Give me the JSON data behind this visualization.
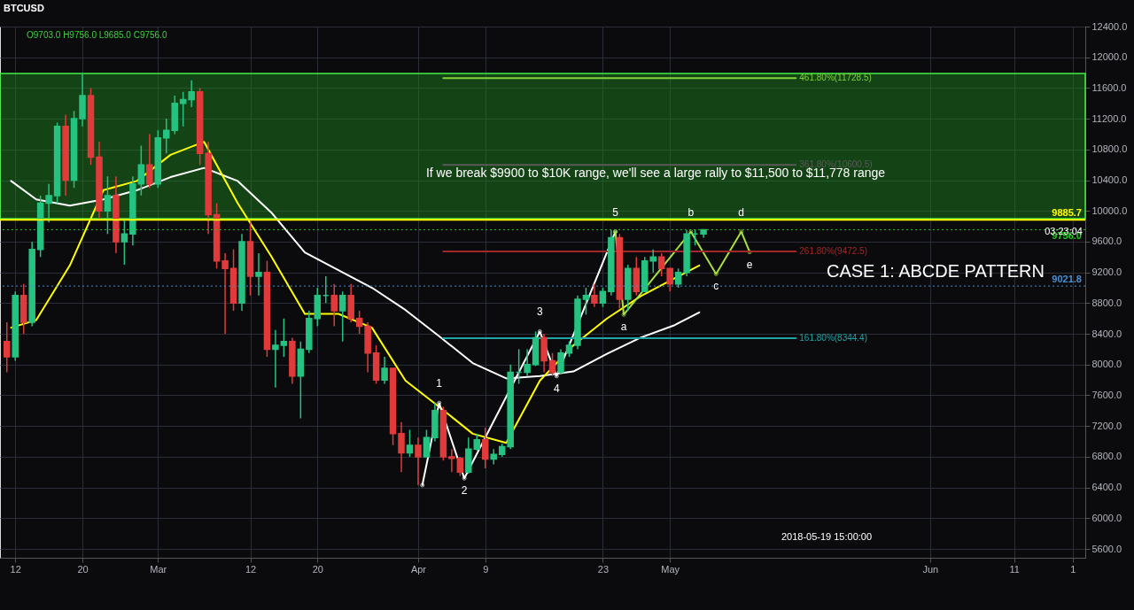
{
  "chart_data": {
    "type": "candlestick",
    "title": "BTCUSD",
    "subtitle": "O9703.0 H9756.0 L9685.0 C9756.0",
    "x": [
      "2018-02-11",
      "2018-02-12",
      "2018-02-13",
      "2018-02-14",
      "2018-02-15",
      "2018-02-16",
      "2018-02-17",
      "2018-02-18",
      "2018-02-19",
      "2018-02-20",
      "2018-02-21",
      "2018-02-22",
      "2018-02-23",
      "2018-02-24",
      "2018-02-25",
      "2018-02-26",
      "2018-02-27",
      "2018-02-28",
      "2018-03-01",
      "2018-03-02",
      "2018-03-03",
      "2018-03-04",
      "2018-03-05",
      "2018-03-06",
      "2018-03-07",
      "2018-03-08",
      "2018-03-09",
      "2018-03-10",
      "2018-03-11",
      "2018-03-12",
      "2018-03-13",
      "2018-03-14",
      "2018-03-15",
      "2018-03-16",
      "2018-03-17",
      "2018-03-18",
      "2018-03-19",
      "2018-03-20",
      "2018-03-21",
      "2018-03-22",
      "2018-03-23",
      "2018-03-24",
      "2018-03-25",
      "2018-03-26",
      "2018-03-27",
      "2018-03-28",
      "2018-03-29",
      "2018-03-30",
      "2018-03-31",
      "2018-04-01",
      "2018-04-02",
      "2018-04-03",
      "2018-04-04",
      "2018-04-05",
      "2018-04-06",
      "2018-04-07",
      "2018-04-08",
      "2018-04-09",
      "2018-04-10",
      "2018-04-11",
      "2018-04-12",
      "2018-04-13",
      "2018-04-14",
      "2018-04-15",
      "2018-04-16",
      "2018-04-17",
      "2018-04-18",
      "2018-04-19",
      "2018-04-20",
      "2018-04-21",
      "2018-04-22",
      "2018-04-23",
      "2018-04-24",
      "2018-04-25",
      "2018-04-26",
      "2018-04-27",
      "2018-04-28",
      "2018-04-29",
      "2018-04-30",
      "2018-05-01",
      "2018-05-02",
      "2018-05-03",
      "2018-05-04",
      "2018-05-05"
    ],
    "ohlc": [
      [
        8300,
        8550,
        7900,
        8100
      ],
      [
        8100,
        8950,
        8050,
        8900
      ],
      [
        8900,
        9050,
        8400,
        8550
      ],
      [
        8550,
        9600,
        8500,
        9500
      ],
      [
        9500,
        10200,
        9400,
        10100
      ],
      [
        10100,
        10350,
        9850,
        10200
      ],
      [
        10200,
        11150,
        10100,
        11100
      ],
      [
        11100,
        11250,
        10200,
        10400
      ],
      [
        10400,
        11300,
        10300,
        11200
      ],
      [
        11200,
        11790,
        11100,
        11500
      ],
      [
        11500,
        11600,
        10600,
        10700
      ],
      [
        10700,
        10900,
        9900,
        10000
      ],
      [
        10000,
        10450,
        9700,
        10200
      ],
      [
        10200,
        10450,
        9450,
        9600
      ],
      [
        9600,
        9900,
        9300,
        9700
      ],
      [
        9700,
        10450,
        9550,
        10350
      ],
      [
        10350,
        10850,
        10200,
        10600
      ],
      [
        10600,
        11000,
        10300,
        10350
      ],
      [
        10350,
        11050,
        10300,
        10950
      ],
      [
        10950,
        11200,
        10750,
        11050
      ],
      [
        11050,
        11500,
        11000,
        11400
      ],
      [
        11400,
        11550,
        11100,
        11450
      ],
      [
        11450,
        11700,
        11350,
        11550
      ],
      [
        11550,
        11600,
        10600,
        10750
      ],
      [
        10750,
        10900,
        9700,
        9950
      ],
      [
        9950,
        10100,
        9250,
        9350
      ],
      [
        9350,
        9450,
        8400,
        9250
      ],
      [
        9250,
        9500,
        8700,
        8800
      ],
      [
        8800,
        9700,
        8700,
        9600
      ],
      [
        9600,
        9850,
        8900,
        9150
      ],
      [
        9150,
        9450,
        8900,
        9200
      ],
      [
        9200,
        9350,
        8100,
        8200
      ],
      [
        8200,
        8450,
        7700,
        8250
      ],
      [
        8250,
        8600,
        8100,
        8300
      ],
      [
        8300,
        8350,
        7750,
        7850
      ],
      [
        7850,
        8300,
        7300,
        8200
      ],
      [
        8200,
        8700,
        8150,
        8600
      ],
      [
        8600,
        9000,
        8500,
        8900
      ],
      [
        8900,
        9150,
        8800,
        8900
      ],
      [
        8900,
        9050,
        8500,
        8700
      ],
      [
        8700,
        8950,
        8300,
        8900
      ],
      [
        8900,
        9050,
        8550,
        8600
      ],
      [
        8600,
        8700,
        8400,
        8500
      ],
      [
        8500,
        8550,
        7900,
        8150
      ],
      [
        8150,
        8250,
        7750,
        7800
      ],
      [
        7800,
        8100,
        7750,
        7950
      ],
      [
        7950,
        7950,
        6950,
        7100
      ],
      [
        7100,
        7250,
        6600,
        6850
      ],
      [
        6850,
        7150,
        6800,
        6950
      ],
      [
        6950,
        7050,
        6430,
        6800
      ],
      [
        6800,
        7150,
        6800,
        7050
      ],
      [
        7050,
        7500,
        7000,
        7400
      ],
      [
        7400,
        7450,
        6750,
        6800
      ],
      [
        6800,
        6900,
        6600,
        6780
      ],
      [
        6780,
        6800,
        6550,
        6600
      ],
      [
        6600,
        7050,
        6580,
        6900
      ],
      [
        6900,
        7100,
        6880,
        7020
      ],
      [
        7020,
        7180,
        6650,
        6770
      ],
      [
        6770,
        6900,
        6700,
        6830
      ],
      [
        6830,
        6970,
        6800,
        6930
      ],
      [
        6930,
        8000,
        6900,
        7900
      ],
      [
        7900,
        8200,
        7750,
        7900
      ],
      [
        7900,
        8200,
        7850,
        8000
      ],
      [
        8000,
        8430,
        7980,
        8350
      ],
      [
        8350,
        8400,
        7900,
        8050
      ],
      [
        8050,
        8150,
        7850,
        7900
      ],
      [
        7900,
        8200,
        7880,
        8150
      ],
      [
        8150,
        8300,
        8100,
        8250
      ],
      [
        8250,
        8900,
        8200,
        8850
      ],
      [
        8850,
        9000,
        8650,
        8900
      ],
      [
        8900,
        9050,
        8750,
        8800
      ],
      [
        8800,
        9000,
        8750,
        8950
      ],
      [
        8950,
        9750,
        8900,
        9650
      ],
      [
        9650,
        9700,
        8730,
        8850
      ],
      [
        8850,
        9300,
        8700,
        9250
      ],
      [
        9250,
        9400,
        8900,
        8950
      ],
      [
        8950,
        9400,
        8950,
        9350
      ],
      [
        9350,
        9500,
        9200,
        9400
      ],
      [
        9400,
        9450,
        9150,
        9250
      ],
      [
        9250,
        9250,
        8950,
        9050
      ],
      [
        9050,
        9250,
        9000,
        9200
      ],
      [
        9200,
        9750,
        9150,
        9700
      ],
      [
        9700,
        9760,
        9550,
        9700
      ],
      [
        9700,
        9756,
        9650,
        9756
      ]
    ],
    "series": [
      {
        "type": "line",
        "color": "#ffffff",
        "x": [
          "2018-02-11T12:00",
          "2018-02-14T12:00",
          "2018-02-18T12:00",
          "2018-02-22T12:00",
          "2018-02-26T12:00",
          "2018-03-02T12:00",
          "2018-03-06T12:00",
          "2018-03-10T12:00",
          "2018-03-14T12:00",
          "2018-03-18T12:00",
          "2018-03-22T12:00",
          "2018-03-26T12:00",
          "2018-03-30T12:00",
          "2018-04-03T12:00",
          "2018-04-07T12:00",
          "2018-04-11T12:00",
          "2018-04-15T12:00",
          "2018-04-19T12:00",
          "2018-04-23T12:00",
          "2018-04-27T12:00",
          "2018-05-01T12:00",
          "2018-05-04T12:00"
        ],
        "values": [
          10390,
          10150,
          10070,
          10150,
          10270,
          10440,
          10560,
          10390,
          9980,
          9460,
          9230,
          9000,
          8710,
          8370,
          8020,
          7820,
          7850,
          7910,
          8140,
          8350,
          8510,
          8680
        ]
      },
      {
        "type": "line",
        "color": "#ffff00",
        "x": [
          "2018-02-11T12:00",
          "2018-02-14T12:00",
          "2018-02-18T12:00",
          "2018-02-22T12:00",
          "2018-02-26T12:00",
          "2018-03-02T12:00",
          "2018-03-06T12:00",
          "2018-03-10T12:00",
          "2018-03-14T12:00",
          "2018-03-18T12:00",
          "2018-03-22T12:00",
          "2018-03-26T12:00",
          "2018-03-30T12:00",
          "2018-04-03T12:00",
          "2018-04-07T12:00",
          "2018-04-11T12:00",
          "2018-04-15T12:00",
          "2018-04-19T12:00",
          "2018-04-23T12:00",
          "2018-04-27T12:00",
          "2018-05-01T12:00",
          "2018-05-04T12:00"
        ],
        "values": [
          8480,
          8580,
          9290,
          10270,
          10390,
          10730,
          10900,
          10100,
          9410,
          8660,
          8660,
          8480,
          7790,
          7450,
          7100,
          6980,
          7790,
          8250,
          8600,
          8890,
          9120,
          9290
        ]
      },
      {
        "type": "line",
        "color": "#ffffff",
        "marker": "circle",
        "x": [
          "2018-04-01T12:00",
          "2018-04-03T12:00",
          "2018-04-06T12:00",
          "2018-04-15T12:00",
          "2018-04-17T12:00",
          "2018-04-24T12:00"
        ],
        "values": [
          6430,
          7500,
          6520,
          8430,
          7850,
          9730
        ]
      },
      {
        "type": "line",
        "color": "#a8e040",
        "marker": "circle",
        "x": [
          "2018-04-24T12:00",
          "2018-04-25T12:00",
          "2018-05-03T12:00",
          "2018-05-06T12:00",
          "2018-05-09T12:00",
          "2018-05-10T12:00"
        ],
        "values": [
          9730,
          8650,
          9730,
          9180,
          9730,
          9465
        ]
      },
      {
        "type": "line",
        "name": "461.80%(11728.5)",
        "color": "#7fd13b",
        "x": [
          "2018-04-04",
          "2018-05-16"
        ],
        "values": [
          11728.5,
          11728.5
        ]
      },
      {
        "type": "line",
        "name": "361.80%(10600.5)",
        "color": "#5a5a5a",
        "x": [
          "2018-04-04",
          "2018-05-16"
        ],
        "values": [
          10600.5,
          10600.5
        ]
      },
      {
        "type": "line",
        "name": "261.80%(9472.5)",
        "color": "#a02828",
        "x": [
          "2018-04-04",
          "2018-05-16"
        ],
        "values": [
          9472.5,
          9472.5
        ]
      },
      {
        "type": "line",
        "name": "161.80%(8344.4)",
        "color": "#1fa5a5",
        "x": [
          "2018-04-04",
          "2018-05-16"
        ],
        "values": [
          8344.4,
          8344.4
        ]
      }
    ],
    "bands": [
      {
        "axis": "y",
        "from": 9900,
        "to": 11790,
        "color": "#1f8a1f"
      }
    ],
    "ref_lines": [
      {
        "axis": "y",
        "value": 9885.7,
        "label": "9885.7",
        "color": "#ffff00",
        "line_style": "solid"
      },
      {
        "axis": "y",
        "value": 9756.0,
        "label": "9756.0",
        "color": "#22cc22",
        "line_style": "dotted"
      },
      {
        "axis": "y",
        "value": 9021.8,
        "label": "9021.8",
        "color": "#4a8fd0",
        "line_style": "dotted"
      }
    ],
    "annotations": [
      "If we break $9900 to $10K range, we'll see a large rally to $11,500 to $11,778 range",
      "CASE 1: ABCDE PATTERN",
      "03:23:04",
      "2018-05-19 15:00:00",
      {
        "text": "1",
        "x": "2018-04-03T12:00",
        "y": 7500
      },
      {
        "text": "2",
        "x": "2018-04-06T12:00",
        "y": 6520
      },
      {
        "text": "3",
        "x": "2018-04-15T12:00",
        "y": 8430
      },
      {
        "text": "4",
        "x": "2018-04-17T12:00",
        "y": 7850
      },
      {
        "text": "5",
        "x": "2018-04-24T12:00",
        "y": 9730
      },
      {
        "text": "a",
        "x": "2018-04-25T12:00",
        "y": 8650
      },
      {
        "text": "b",
        "x": "2018-05-03T12:00",
        "y": 9730
      },
      {
        "text": "c",
        "x": "2018-05-06T12:00",
        "y": 9180
      },
      {
        "text": "d",
        "x": "2018-05-09T12:00",
        "y": 9730
      },
      {
        "text": "e",
        "x": "2018-05-10T12:00",
        "y": 9465
      }
    ],
    "xlim": [
      "2018-02-10T17:00",
      "2018-06-18T23:00"
    ],
    "xticks": [
      {
        "value": "2018-02-12",
        "label": "12"
      },
      {
        "value": "2018-02-20",
        "label": "20"
      },
      {
        "value": "2018-03-01",
        "label": "Mar"
      },
      {
        "value": "2018-03-12",
        "label": "12"
      },
      {
        "value": "2018-03-20",
        "label": "20"
      },
      {
        "value": "2018-04-01",
        "label": "Apr"
      },
      {
        "value": "2018-04-09",
        "label": "9"
      },
      {
        "value": "2018-04-23",
        "label": "23"
      },
      {
        "value": "2018-05-01",
        "label": "May"
      },
      {
        "value": "2018-06-01",
        "label": "Jun"
      },
      {
        "value": "2018-06-11",
        "label": "11"
      },
      {
        "value": "2018-06-18",
        "label": "1"
      }
    ],
    "ylim": [
      5485,
      12400
    ],
    "yticks": [
      {
        "value": 5600,
        "label": "5600.0"
      },
      {
        "value": 6000,
        "label": "6000.0"
      },
      {
        "value": 6400,
        "label": "6400.0"
      },
      {
        "value": 6800,
        "label": "6800.0"
      },
      {
        "value": 7200,
        "label": "7200.0"
      },
      {
        "value": 7600,
        "label": "7600.0"
      },
      {
        "value": 8000,
        "label": "8000.0"
      },
      {
        "value": 8400,
        "label": "8400.0"
      },
      {
        "value": 8800,
        "label": "8800.0"
      },
      {
        "value": 9200,
        "label": "9200.0"
      },
      {
        "value": 9600,
        "label": "9600.0"
      },
      {
        "value": 10000,
        "label": "10000.0"
      },
      {
        "value": 10400,
        "label": "10400.0"
      },
      {
        "value": 10800,
        "label": "10800.0"
      },
      {
        "value": 11200,
        "label": "11200.0"
      },
      {
        "value": 11600,
        "label": "11600.0"
      },
      {
        "value": 12000,
        "label": "12000.0"
      },
      {
        "value": 12400,
        "label": "12400.0"
      }
    ],
    "grid": true
  }
}
